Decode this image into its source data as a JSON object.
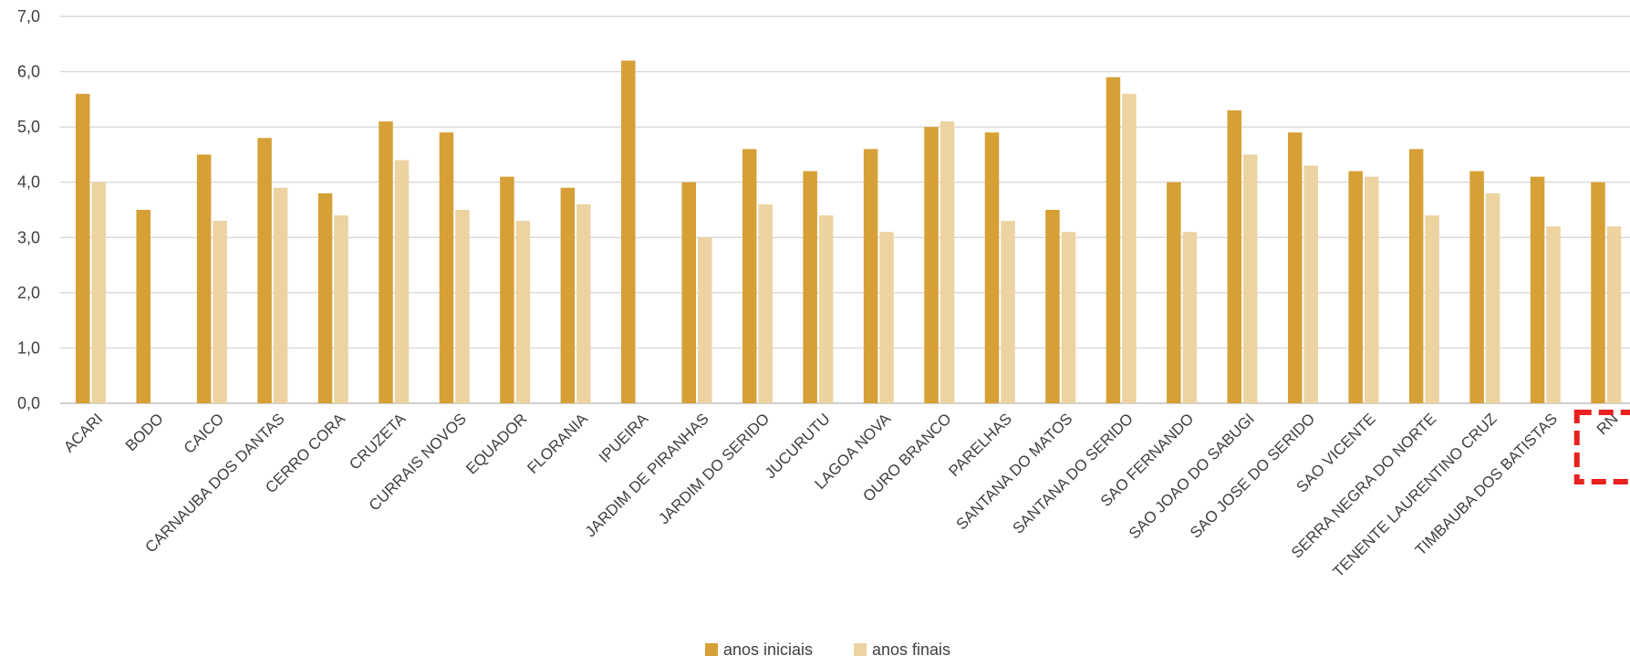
{
  "chart_data": {
    "type": "bar",
    "categories": [
      "ACARI",
      "BODO",
      "CAICO",
      "CARNAUBA DOS DANTAS",
      "CERRO CORA",
      "CRUZETA",
      "CURRAIS NOVOS",
      "EQUADOR",
      "FLORANIA",
      "IPUEIRA",
      "JARDIM DE PIRANHAS",
      "JARDIM DO SERIDO",
      "JUCURUTU",
      "LAGOA NOVA",
      "OURO BRANCO",
      "PARELHAS",
      "SANTANA DO MATOS",
      "SANTANA DO SERIDO",
      "SAO FERNANDO",
      "SAO JOAO DO SABUGI",
      "SAO JOSE DO SERIDO",
      "SAO VICENTE",
      "SERRA NEGRA DO NORTE",
      "TENENTE LAURENTINO CRUZ",
      "TIMBAUBA DOS BATISTAS",
      "RN"
    ],
    "series": [
      {
        "name": "anos iniciais",
        "color": "#D6A036",
        "values": [
          5.6,
          3.5,
          4.5,
          4.8,
          3.8,
          5.1,
          4.9,
          4.1,
          3.9,
          6.2,
          4.0,
          4.6,
          4.2,
          4.6,
          5.0,
          4.9,
          3.5,
          5.9,
          4.0,
          5.3,
          4.9,
          4.2,
          4.6,
          4.2,
          4.1,
          4.0
        ]
      },
      {
        "name": "anos finais",
        "color": "#EDD3A2",
        "values": [
          4.0,
          null,
          3.3,
          3.9,
          3.4,
          4.4,
          3.5,
          3.3,
          3.6,
          null,
          3.0,
          3.6,
          3.4,
          3.1,
          5.1,
          3.3,
          3.1,
          5.6,
          3.1,
          4.5,
          4.3,
          4.1,
          3.4,
          3.8,
          3.2,
          3.2
        ]
      }
    ],
    "ylim": [
      0,
      7
    ],
    "yticks": [
      "0,0",
      "1,0",
      "2,0",
      "3,0",
      "4,0",
      "5,0",
      "6,0",
      "7,0"
    ],
    "grid": true,
    "legend": "bottom-center",
    "highlight_category": "RN",
    "highlight_color": "#E8201F"
  }
}
